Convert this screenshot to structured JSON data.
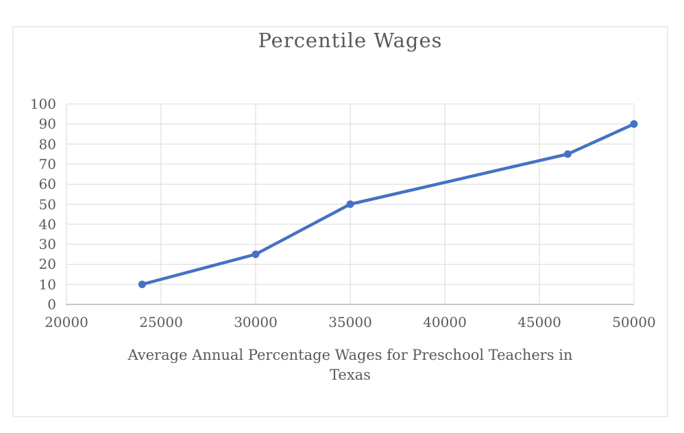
{
  "chart": {
    "title": "Percentile Wages",
    "x_axis_title_lines": [
      "Average Annual Percentage Wages for Preschool Teachers in",
      "Texas"
    ]
  },
  "chart_data": {
    "type": "line",
    "title": "Percentile Wages",
    "xlabel": "Average Annual Percentage Wages for Preschool Teachers in Texas",
    "ylabel": "",
    "series": [
      {
        "name": "Percentile Wages",
        "x": [
          24000,
          30000,
          35000,
          46500,
          50000
        ],
        "y": [
          10,
          25,
          50,
          75,
          90
        ]
      }
    ],
    "xlim": [
      20000,
      50000
    ],
    "ylim": [
      0,
      100
    ],
    "x_ticks": [
      20000,
      25000,
      30000,
      35000,
      40000,
      45000,
      50000
    ],
    "y_ticks": [
      0,
      10,
      20,
      30,
      40,
      50,
      60,
      70,
      80,
      90,
      100
    ],
    "grid": true,
    "legend_position": "none",
    "line_color": "#4472C4",
    "marker": "circle",
    "text_color": "#595959",
    "gridline_color": "#D9D9D9",
    "axis_line_color": "#B3B3B3",
    "frame_border_color": "#EBEBEB"
  }
}
